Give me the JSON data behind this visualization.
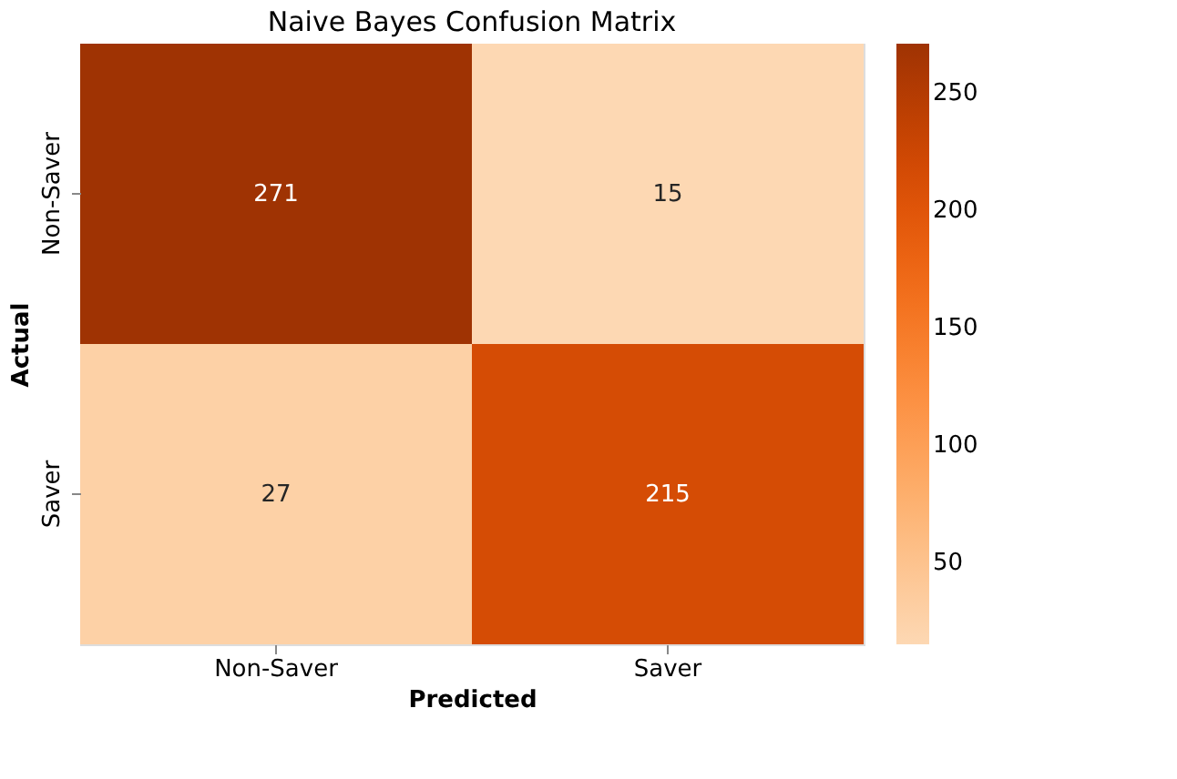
{
  "chart_data": {
    "type": "heatmap",
    "title": "Naive Bayes Confusion Matrix",
    "xlabel": "Predicted",
    "ylabel": "Actual",
    "categories": [
      "Non-Saver",
      "Saver"
    ],
    "y_categories": [
      "Non-Saver",
      "Saver"
    ],
    "cells": [
      [
        271,
        15
      ],
      [
        27,
        215
      ]
    ],
    "clim": [
      15,
      271
    ],
    "cticks": [
      50,
      100,
      150,
      200,
      250
    ],
    "data_labels": true,
    "grid": false
  }
}
